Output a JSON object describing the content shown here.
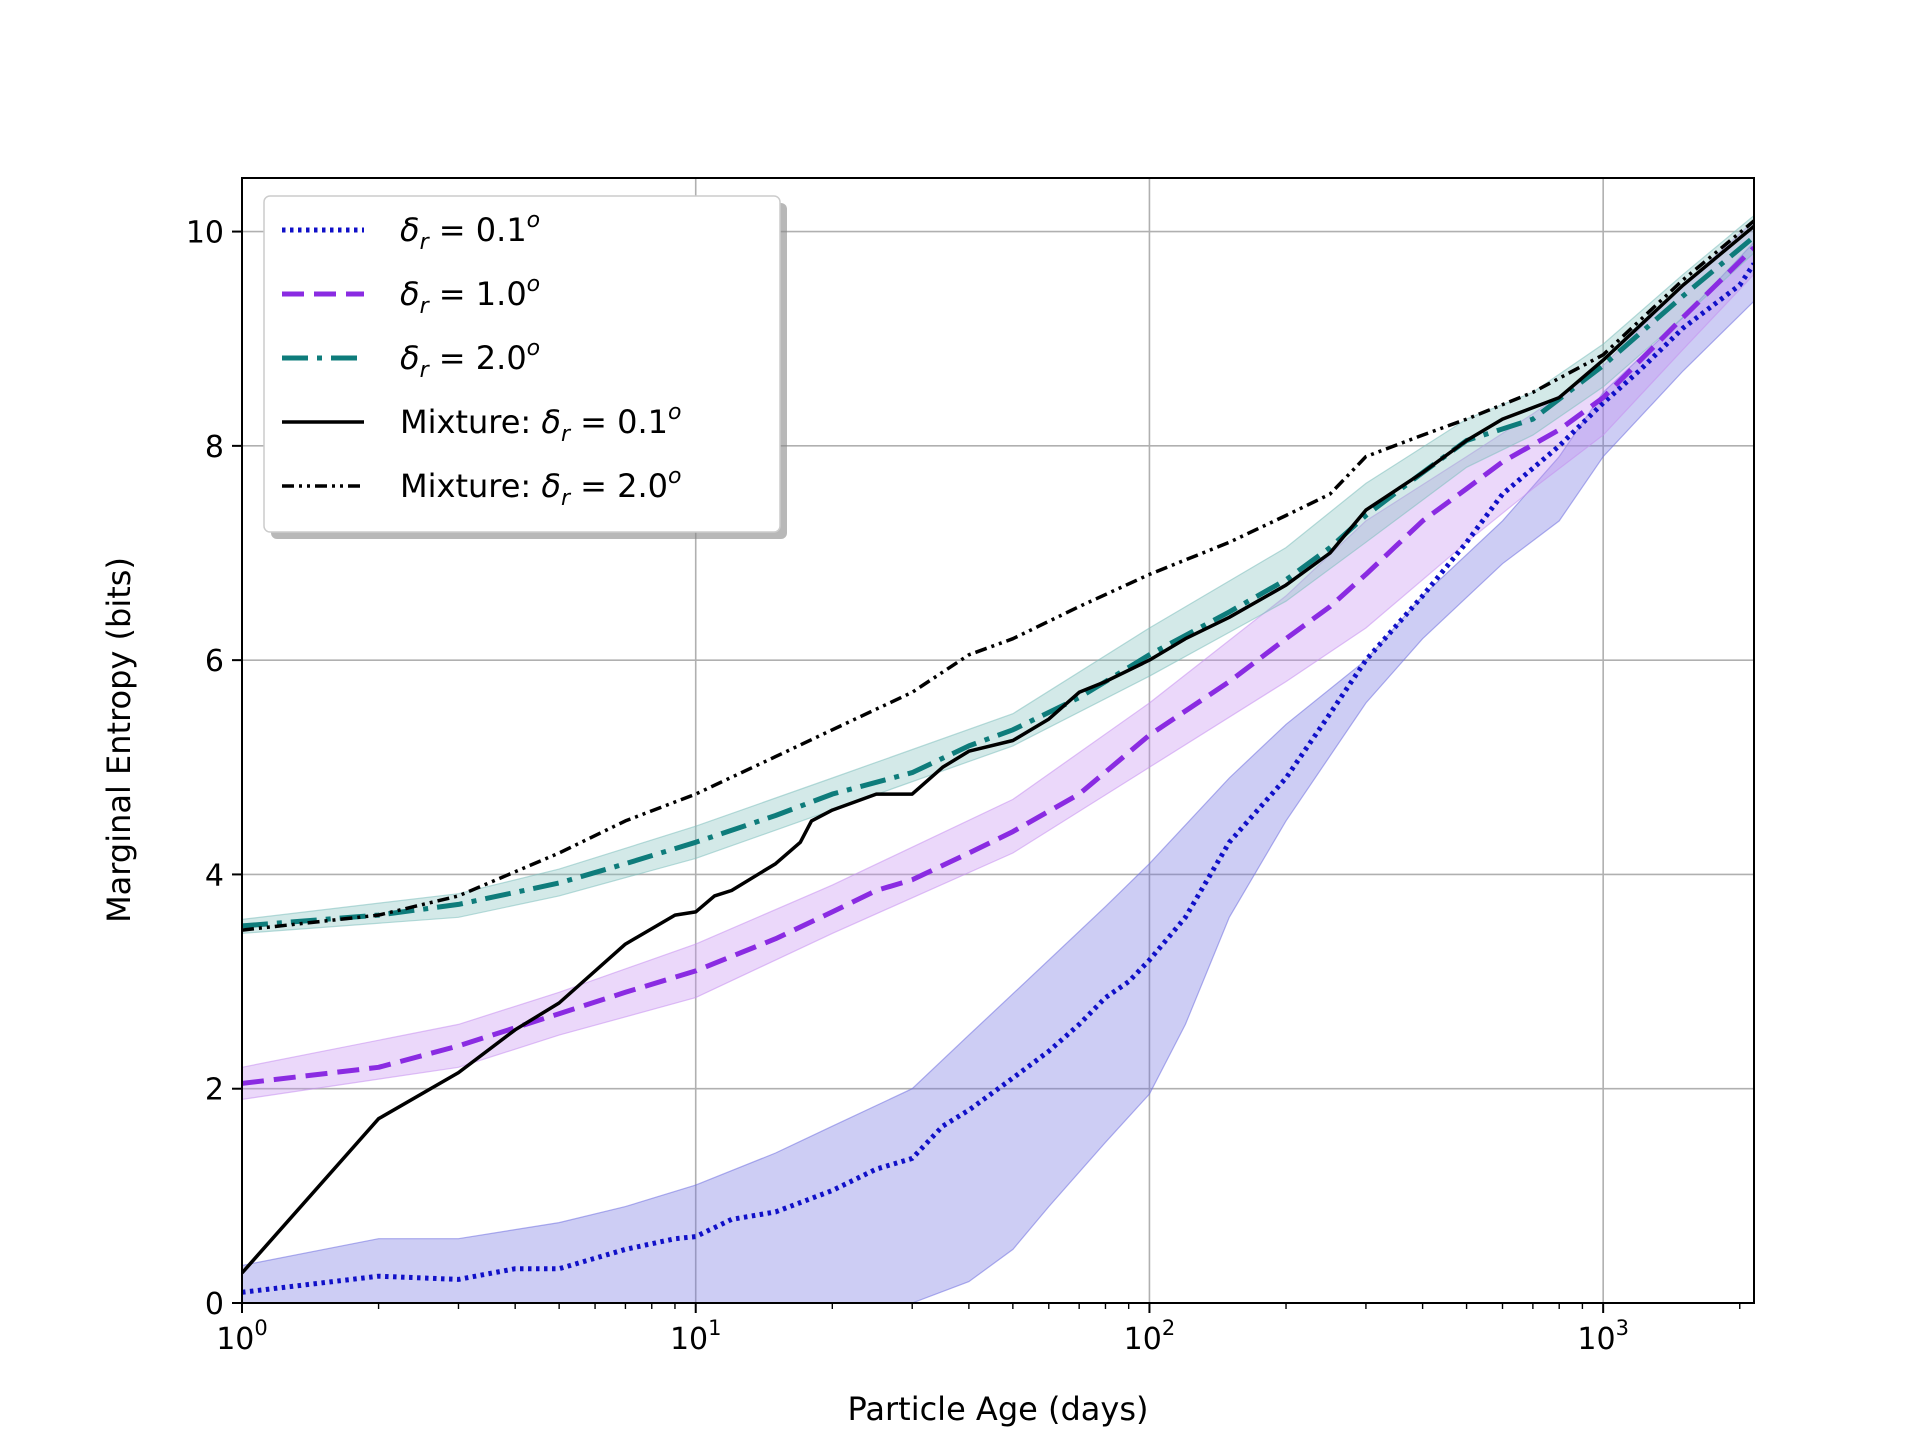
{
  "chart_data": {
    "type": "line",
    "xlabel": "Particle Age (days)",
    "ylabel": "Marginal Entropy (bits)",
    "xscale": "log",
    "xlim": [
      1,
      2150
    ],
    "ylim": [
      0,
      10.5
    ],
    "x_ticks": [
      {
        "value": 1,
        "base": "10",
        "exp": "0"
      },
      {
        "value": 10,
        "base": "10",
        "exp": "1"
      },
      {
        "value": 100,
        "base": "10",
        "exp": "2"
      },
      {
        "value": 1000,
        "base": "10",
        "exp": "3"
      }
    ],
    "y_ticks": [
      0,
      2,
      4,
      6,
      8,
      10
    ],
    "grid": true,
    "legend_position": "top-left",
    "series": [
      {
        "name": "δr = 0.1°",
        "legend": {
          "prefix": "",
          "var": "δ",
          "sub": "r",
          "val": " = 0.1",
          "sup": "o"
        },
        "color": "#1010c8",
        "style": "dotted",
        "band_color": "#7070e0",
        "points": [
          [
            1,
            0.1
          ],
          [
            2,
            0.25
          ],
          [
            3,
            0.22
          ],
          [
            4,
            0.32
          ],
          [
            5,
            0.32
          ],
          [
            7,
            0.5
          ],
          [
            9,
            0.6
          ],
          [
            10,
            0.62
          ],
          [
            12,
            0.78
          ],
          [
            15,
            0.85
          ],
          [
            20,
            1.05
          ],
          [
            25,
            1.25
          ],
          [
            30,
            1.35
          ],
          [
            35,
            1.65
          ],
          [
            40,
            1.8
          ],
          [
            50,
            2.1
          ],
          [
            60,
            2.35
          ],
          [
            70,
            2.6
          ],
          [
            80,
            2.85
          ],
          [
            90,
            3.0
          ],
          [
            100,
            3.2
          ],
          [
            120,
            3.6
          ],
          [
            150,
            4.3
          ],
          [
            200,
            4.9
          ],
          [
            250,
            5.5
          ],
          [
            300,
            6.0
          ],
          [
            400,
            6.6
          ],
          [
            500,
            7.1
          ],
          [
            600,
            7.55
          ],
          [
            800,
            8.0
          ],
          [
            1000,
            8.4
          ],
          [
            1200,
            8.7
          ],
          [
            1500,
            9.1
          ],
          [
            2000,
            9.5
          ],
          [
            2150,
            9.7
          ]
        ],
        "band_lower": [
          [
            1,
            0
          ],
          [
            5,
            0
          ],
          [
            7,
            0
          ],
          [
            10,
            0
          ],
          [
            20,
            0
          ],
          [
            30,
            0
          ],
          [
            40,
            0.2
          ],
          [
            50,
            0.5
          ],
          [
            60,
            0.9
          ],
          [
            80,
            1.5
          ],
          [
            100,
            1.95
          ],
          [
            120,
            2.6
          ],
          [
            150,
            3.6
          ],
          [
            200,
            4.5
          ],
          [
            300,
            5.6
          ],
          [
            400,
            6.2
          ],
          [
            600,
            6.9
          ],
          [
            800,
            7.3
          ],
          [
            1000,
            7.9
          ],
          [
            1500,
            8.7
          ],
          [
            2150,
            9.35
          ]
        ],
        "band_upper": [
          [
            1,
            0.35
          ],
          [
            2,
            0.6
          ],
          [
            3,
            0.6
          ],
          [
            5,
            0.75
          ],
          [
            7,
            0.9
          ],
          [
            10,
            1.1
          ],
          [
            15,
            1.4
          ],
          [
            20,
            1.65
          ],
          [
            30,
            2.0
          ],
          [
            40,
            2.5
          ],
          [
            60,
            3.2
          ],
          [
            80,
            3.7
          ],
          [
            100,
            4.1
          ],
          [
            150,
            4.9
          ],
          [
            200,
            5.4
          ],
          [
            300,
            6.0
          ],
          [
            400,
            6.6
          ],
          [
            600,
            7.3
          ],
          [
            800,
            7.9
          ],
          [
            1000,
            8.5
          ],
          [
            1500,
            9.2
          ],
          [
            2150,
            9.9
          ]
        ]
      },
      {
        "name": "δr = 1.0°",
        "legend": {
          "prefix": "",
          "var": "δ",
          "sub": "r",
          "val": " = 1.0",
          "sup": "o"
        },
        "color": "#8a2be2",
        "style": "dashed",
        "band_color": "#c690f0",
        "points": [
          [
            1,
            2.05
          ],
          [
            2,
            2.2
          ],
          [
            3,
            2.4
          ],
          [
            5,
            2.7
          ],
          [
            7,
            2.9
          ],
          [
            10,
            3.1
          ],
          [
            15,
            3.4
          ],
          [
            20,
            3.65
          ],
          [
            25,
            3.85
          ],
          [
            30,
            3.95
          ],
          [
            40,
            4.2
          ],
          [
            50,
            4.4
          ],
          [
            70,
            4.75
          ],
          [
            100,
            5.3
          ],
          [
            150,
            5.8
          ],
          [
            200,
            6.2
          ],
          [
            250,
            6.5
          ],
          [
            300,
            6.8
          ],
          [
            400,
            7.3
          ],
          [
            500,
            7.6
          ],
          [
            600,
            7.85
          ],
          [
            800,
            8.15
          ],
          [
            1000,
            8.45
          ],
          [
            1500,
            9.2
          ],
          [
            2150,
            9.85
          ]
        ],
        "band_lower": [
          [
            1,
            1.9
          ],
          [
            3,
            2.2
          ],
          [
            5,
            2.5
          ],
          [
            10,
            2.85
          ],
          [
            20,
            3.45
          ],
          [
            50,
            4.2
          ],
          [
            100,
            5.0
          ],
          [
            200,
            5.8
          ],
          [
            300,
            6.3
          ],
          [
            500,
            7.1
          ],
          [
            700,
            7.6
          ],
          [
            1000,
            8.1
          ],
          [
            1500,
            8.9
          ],
          [
            2150,
            9.6
          ]
        ],
        "band_upper": [
          [
            1,
            2.2
          ],
          [
            3,
            2.6
          ],
          [
            5,
            2.9
          ],
          [
            10,
            3.35
          ],
          [
            20,
            3.9
          ],
          [
            50,
            4.7
          ],
          [
            100,
            5.6
          ],
          [
            200,
            6.6
          ],
          [
            300,
            7.3
          ],
          [
            500,
            7.9
          ],
          [
            700,
            8.3
          ],
          [
            1000,
            8.75
          ],
          [
            1500,
            9.5
          ],
          [
            2150,
            10.1
          ]
        ]
      },
      {
        "name": "δr = 2.0°",
        "legend": {
          "prefix": "",
          "var": "δ",
          "sub": "r",
          "val": " = 2.0",
          "sup": "o"
        },
        "color": "#0e7c7b",
        "style": "dashdot",
        "band_color": "#80c0bd",
        "points": [
          [
            1,
            3.52
          ],
          [
            2,
            3.62
          ],
          [
            3,
            3.72
          ],
          [
            5,
            3.92
          ],
          [
            7,
            4.1
          ],
          [
            10,
            4.3
          ],
          [
            15,
            4.55
          ],
          [
            20,
            4.75
          ],
          [
            30,
            4.95
          ],
          [
            40,
            5.2
          ],
          [
            50,
            5.35
          ],
          [
            70,
            5.65
          ],
          [
            100,
            6.05
          ],
          [
            150,
            6.45
          ],
          [
            200,
            6.75
          ],
          [
            250,
            7.05
          ],
          [
            300,
            7.35
          ],
          [
            400,
            7.75
          ],
          [
            500,
            8.05
          ],
          [
            700,
            8.25
          ],
          [
            1000,
            8.75
          ],
          [
            1500,
            9.4
          ],
          [
            2150,
            9.95
          ]
        ],
        "band_lower": [
          [
            1,
            3.45
          ],
          [
            3,
            3.6
          ],
          [
            5,
            3.8
          ],
          [
            10,
            4.15
          ],
          [
            20,
            4.6
          ],
          [
            50,
            5.2
          ],
          [
            100,
            5.85
          ],
          [
            200,
            6.55
          ],
          [
            300,
            7.1
          ],
          [
            500,
            7.8
          ],
          [
            700,
            8.1
          ],
          [
            1000,
            8.55
          ],
          [
            1500,
            9.2
          ],
          [
            2150,
            9.8
          ]
        ],
        "band_upper": [
          [
            1,
            3.58
          ],
          [
            3,
            3.82
          ],
          [
            5,
            4.05
          ],
          [
            10,
            4.45
          ],
          [
            20,
            4.9
          ],
          [
            50,
            5.5
          ],
          [
            100,
            6.3
          ],
          [
            200,
            7.05
          ],
          [
            300,
            7.65
          ],
          [
            500,
            8.25
          ],
          [
            700,
            8.5
          ],
          [
            1000,
            8.95
          ],
          [
            1500,
            9.6
          ],
          [
            2150,
            10.15
          ]
        ]
      },
      {
        "name": "Mixture: δr = 0.1°",
        "legend": {
          "prefix": "Mixture: ",
          "var": "δ",
          "sub": "r",
          "val": " = 0.1",
          "sup": "o"
        },
        "color": "#000000",
        "style": "solid",
        "points": [
          [
            1,
            0.28
          ],
          [
            2,
            1.72
          ],
          [
            3,
            2.15
          ],
          [
            4,
            2.55
          ],
          [
            5,
            2.8
          ],
          [
            7,
            3.35
          ],
          [
            9,
            3.62
          ],
          [
            10,
            3.65
          ],
          [
            11,
            3.8
          ],
          [
            12,
            3.85
          ],
          [
            15,
            4.1
          ],
          [
            17,
            4.3
          ],
          [
            18,
            4.5
          ],
          [
            20,
            4.6
          ],
          [
            25,
            4.75
          ],
          [
            30,
            4.75
          ],
          [
            35,
            5.0
          ],
          [
            40,
            5.15
          ],
          [
            50,
            5.25
          ],
          [
            60,
            5.45
          ],
          [
            70,
            5.7
          ],
          [
            80,
            5.8
          ],
          [
            100,
            6.0
          ],
          [
            120,
            6.2
          ],
          [
            150,
            6.4
          ],
          [
            200,
            6.7
          ],
          [
            250,
            7.0
          ],
          [
            300,
            7.4
          ],
          [
            400,
            7.75
          ],
          [
            500,
            8.05
          ],
          [
            600,
            8.25
          ],
          [
            800,
            8.45
          ],
          [
            1000,
            8.8
          ],
          [
            1500,
            9.5
          ],
          [
            2150,
            10.05
          ]
        ]
      },
      {
        "name": "Mixture: δr = 2.0°",
        "legend": {
          "prefix": "Mixture: ",
          "var": "δ",
          "sub": "r",
          "val": " = 2.0",
          "sup": "o"
        },
        "color": "#000000",
        "style": "dashdotdot",
        "points": [
          [
            1,
            3.48
          ],
          [
            2,
            3.62
          ],
          [
            3,
            3.8
          ],
          [
            5,
            4.2
          ],
          [
            7,
            4.5
          ],
          [
            10,
            4.75
          ],
          [
            15,
            5.1
          ],
          [
            20,
            5.35
          ],
          [
            30,
            5.7
          ],
          [
            40,
            6.05
          ],
          [
            50,
            6.2
          ],
          [
            70,
            6.5
          ],
          [
            100,
            6.8
          ],
          [
            150,
            7.1
          ],
          [
            200,
            7.35
          ],
          [
            250,
            7.55
          ],
          [
            300,
            7.9
          ],
          [
            400,
            8.1
          ],
          [
            500,
            8.25
          ],
          [
            700,
            8.5
          ],
          [
            1000,
            8.85
          ],
          [
            1500,
            9.55
          ],
          [
            2150,
            10.1
          ]
        ]
      }
    ]
  }
}
